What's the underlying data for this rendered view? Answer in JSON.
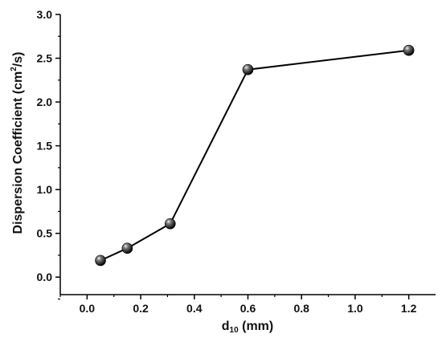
{
  "chart_data": {
    "type": "line",
    "title": "",
    "xlabel_main": "d",
    "xlabel_sub": "10",
    "xlabel_unit": " (mm)",
    "ylabel_main": "Dispersion Coefficient (cm",
    "ylabel_sup": "2",
    "ylabel_unit": "/s)",
    "xlim": [
      -0.1,
      1.3
    ],
    "ylim": [
      -0.2,
      3.0
    ],
    "xticks": [
      0.0,
      0.2,
      0.4,
      0.6,
      0.8,
      1.0,
      1.2
    ],
    "xtick_labels": [
      "0.0",
      "0.2",
      "0.4",
      "0.6",
      "0.8",
      "1.0",
      "1.2"
    ],
    "yticks": [
      0.0,
      0.5,
      1.0,
      1.5,
      2.0,
      2.5,
      3.0
    ],
    "ytick_labels": [
      "0.0",
      "0.5",
      "1.0",
      "1.5",
      "2.0",
      "2.5",
      "3.0"
    ],
    "grid": false,
    "series": [
      {
        "x": [
          0.05,
          0.15,
          0.31,
          0.6,
          1.2
        ],
        "y": [
          0.19,
          0.33,
          0.61,
          2.37,
          2.59
        ]
      }
    ],
    "marker_color": "#000000",
    "line_color": "#000000"
  }
}
